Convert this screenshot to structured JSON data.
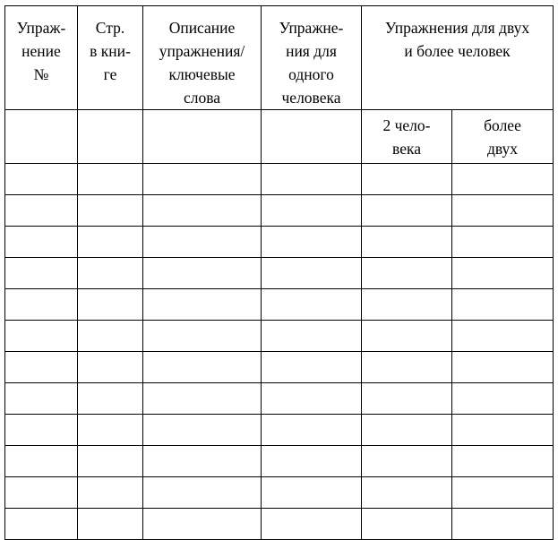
{
  "table": {
    "headers": {
      "exercise_no": "Упраж-\nнение\n№",
      "page_in_book": "Стр.\nв кни-\nге",
      "description": "Описание\nупражнения/\nключевые\nслова",
      "single_person": "Упражне-\nния для\nодного\nчеловека",
      "multi_person_group": "Упражнения для двух\nи более человек",
      "two_people": "2 чело-\nвека",
      "more_than_two": "более\nдвух"
    },
    "data_rows": [
      [
        "",
        "",
        "",
        "",
        "",
        ""
      ],
      [
        "",
        "",
        "",
        "",
        "",
        ""
      ],
      [
        "",
        "",
        "",
        "",
        "",
        ""
      ],
      [
        "",
        "",
        "",
        "",
        "",
        ""
      ],
      [
        "",
        "",
        "",
        "",
        "",
        ""
      ],
      [
        "",
        "",
        "",
        "",
        "",
        ""
      ],
      [
        "",
        "",
        "",
        "",
        "",
        ""
      ],
      [
        "",
        "",
        "",
        "",
        "",
        ""
      ],
      [
        "",
        "",
        "",
        "",
        "",
        ""
      ],
      [
        "",
        "",
        "",
        "",
        "",
        ""
      ],
      [
        "",
        "",
        "",
        "",
        "",
        ""
      ],
      [
        "",
        "",
        "",
        "",
        "",
        ""
      ]
    ],
    "colors": {
      "border": "#000000",
      "background": "#ffffff",
      "text": "#000000"
    }
  }
}
